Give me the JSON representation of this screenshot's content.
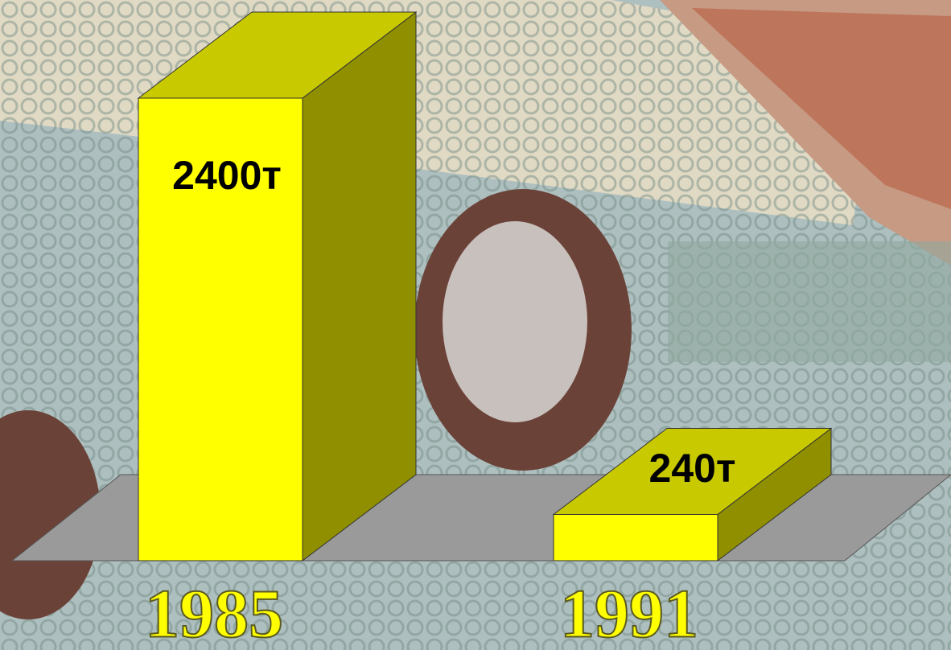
{
  "chart_data": {
    "type": "bar3d",
    "categories": [
      "1985",
      "1991"
    ],
    "values": [
      2400,
      240
    ],
    "value_labels": [
      "2400т",
      "240т"
    ],
    "color": "#ffff00"
  }
}
